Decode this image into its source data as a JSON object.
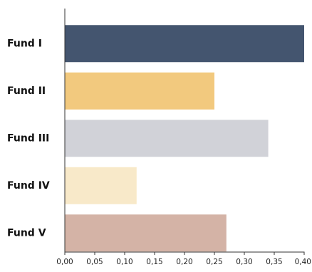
{
  "chart_data": {
    "type": "bar",
    "orientation": "horizontal",
    "categories": [
      "Fund I",
      "Fund II",
      "Fund III",
      "Fund IV",
      "Fund V"
    ],
    "values": [
      0.4,
      0.25,
      0.34,
      0.12,
      0.27
    ],
    "colors": [
      "#44556f",
      "#f2c97e",
      "#d1d2d8",
      "#f8e9c9",
      "#d4b3a6"
    ],
    "x_ticks": [
      "0,00",
      "0,05",
      "0,10",
      "0,15",
      "0,20",
      "0,25",
      "0,30",
      "0,35",
      "0,40"
    ],
    "xlim": [
      0,
      0.4
    ],
    "title": "",
    "xlabel": "",
    "ylabel": "",
    "grid": false,
    "legend": "none"
  }
}
